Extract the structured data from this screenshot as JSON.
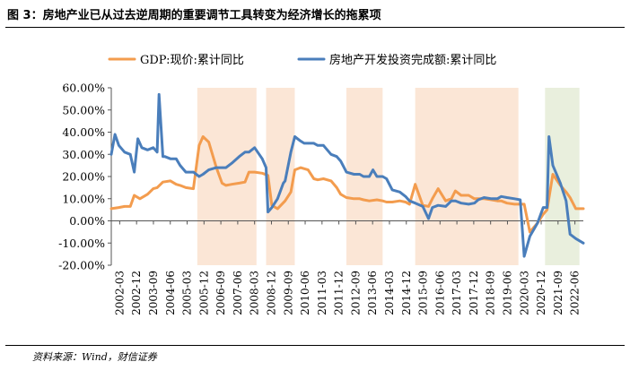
{
  "figure": {
    "title": "图 3：房地产业已从过去逆周期的重要调节工具转变为经济增长的拖累项",
    "source": "资料来源：Wind，财信证券"
  },
  "colors": {
    "gdp": "#f39c4e",
    "realestate": "#4a7ebb",
    "shade_orange": "#fbe6d6",
    "shade_green": "#e9efdd"
  },
  "chart_data": {
    "type": "line",
    "title": "",
    "xlabel": "",
    "ylabel": "",
    "ylim": [
      -20,
      60
    ],
    "y_ticks": [
      -20,
      -10,
      0,
      10,
      20,
      30,
      40,
      50,
      60
    ],
    "y_tick_labels": [
      "-20.00%",
      "-10.00%",
      "0.00%",
      "10.00%",
      "20.00%",
      "30.00%",
      "40.00%",
      "50.00%",
      "60.00%"
    ],
    "x_tick_labels": [
      "2002-03",
      "2002-12",
      "2003-09",
      "2004-06",
      "2005-03",
      "2005-12",
      "2006-09",
      "2007-06",
      "2008-03",
      "2008-12",
      "2009-09",
      "2010-06",
      "2011-03",
      "2011-12",
      "2012-09",
      "2013-06",
      "2014-03",
      "2014-12",
      "2015-09",
      "2016-06",
      "2017-03",
      "2017-12",
      "2018-09",
      "2019-06",
      "2020-03",
      "2020-12",
      "2021-09",
      "2022-06"
    ],
    "x_range": [
      2002.17,
      2022.75
    ],
    "legend": {
      "position": "top"
    },
    "series": [
      {
        "name": "GDP:现价:累计同比",
        "color_key": "gdp",
        "x": [
          2002.17,
          2002.5,
          2002.75,
          2003.0,
          2003.17,
          2003.42,
          2003.75,
          2004.0,
          2004.17,
          2004.42,
          2004.75,
          2005.0,
          2005.17,
          2005.42,
          2005.75,
          2006.0,
          2006.17,
          2006.42,
          2006.75,
          2007.0,
          2007.17,
          2007.42,
          2007.75,
          2008.0,
          2008.17,
          2008.42,
          2008.75,
          2009.0,
          2009.17,
          2009.42,
          2009.75,
          2010.0,
          2010.17,
          2010.42,
          2010.75,
          2011.0,
          2011.17,
          2011.42,
          2011.75,
          2012.0,
          2012.17,
          2012.42,
          2012.75,
          2013.0,
          2013.17,
          2013.42,
          2013.75,
          2014.0,
          2014.17,
          2014.42,
          2014.75,
          2015.0,
          2015.17,
          2015.42,
          2015.75,
          2016.0,
          2016.17,
          2016.42,
          2016.75,
          2017.0,
          2017.17,
          2017.42,
          2017.75,
          2018.0,
          2018.17,
          2018.42,
          2018.75,
          2019.0,
          2019.17,
          2019.42,
          2019.75,
          2020.0,
          2020.17,
          2020.42,
          2020.75,
          2021.0,
          2021.17,
          2021.42,
          2021.75,
          2022.0,
          2022.17,
          2022.42,
          2022.75
        ],
        "values": [
          5.5,
          6,
          6.5,
          6.5,
          11.5,
          10,
          12,
          14.5,
          15,
          17.5,
          18,
          16.5,
          16,
          15,
          14.5,
          34,
          38,
          35.5,
          24,
          17,
          16,
          16.5,
          17,
          17.5,
          22,
          22,
          21.5,
          20.5,
          7,
          5.5,
          9,
          13,
          23,
          24,
          23,
          19,
          18.5,
          19,
          18,
          15,
          12,
          10.5,
          10,
          10,
          9.5,
          9,
          9.5,
          9,
          8.5,
          8.5,
          9,
          8.5,
          7.5,
          16.5,
          7,
          6.5,
          10,
          14.5,
          9,
          10,
          13.5,
          11.5,
          11.5,
          10,
          10,
          10,
          9.5,
          9,
          9,
          8,
          7.5,
          7.5,
          7.5,
          -5,
          -1,
          3,
          5,
          21,
          16,
          13,
          10.5,
          5.5,
          5.5
        ]
      },
      {
        "name": "房地产开发投资完成额:累计同比",
        "color_key": "realestate",
        "x": [
          2002.17,
          2002.33,
          2002.5,
          2002.75,
          2003.0,
          2003.17,
          2003.33,
          2003.5,
          2003.75,
          2004.0,
          2004.17,
          2004.25,
          2004.42,
          2004.5,
          2004.75,
          2005.0,
          2005.17,
          2005.42,
          2005.75,
          2006.0,
          2006.17,
          2006.42,
          2006.75,
          2007.0,
          2007.17,
          2007.42,
          2007.75,
          2008.0,
          2008.17,
          2008.42,
          2008.75,
          2008.92,
          2009.0,
          2009.17,
          2009.42,
          2009.67,
          2009.75,
          2010.0,
          2010.17,
          2010.42,
          2010.58,
          2010.75,
          2011.0,
          2011.17,
          2011.42,
          2011.75,
          2012.0,
          2012.17,
          2012.42,
          2012.75,
          2013.0,
          2013.17,
          2013.42,
          2013.58,
          2013.75,
          2014.0,
          2014.17,
          2014.42,
          2014.75,
          2015.0,
          2015.17,
          2015.42,
          2015.75,
          2016.0,
          2016.17,
          2016.42,
          2016.75,
          2017.0,
          2017.17,
          2017.42,
          2017.75,
          2018.0,
          2018.17,
          2018.42,
          2018.75,
          2019.0,
          2019.17,
          2019.42,
          2019.75,
          2020.0,
          2020.17,
          2020.42,
          2020.75,
          2021.0,
          2021.17,
          2021.25,
          2021.42,
          2021.75,
          2022.0,
          2022.17,
          2022.42,
          2022.75
        ],
        "values": [
          30,
          39,
          34,
          31,
          30,
          22,
          37,
          33,
          32,
          33,
          31,
          57,
          29,
          29,
          28,
          28,
          25,
          22,
          22,
          20,
          21,
          23,
          24,
          24,
          24,
          26,
          29,
          31,
          31,
          33,
          28,
          24,
          4,
          6,
          10,
          17,
          18,
          31,
          38,
          36,
          35,
          35,
          35,
          34,
          34,
          30,
          29,
          27,
          22,
          21,
          21,
          20,
          20,
          23,
          20,
          20,
          19,
          14,
          13,
          11,
          9,
          8,
          6.5,
          1,
          6,
          7,
          6.5,
          9,
          9,
          8,
          7.5,
          8,
          9.5,
          10.5,
          10,
          10,
          11,
          10.5,
          10,
          9.5,
          -16,
          -7,
          -1,
          6,
          6,
          38,
          25,
          17,
          9,
          -6,
          -8,
          -10
        ]
      }
    ],
    "shaded_periods": [
      {
        "start": 2005.92,
        "end": 2008.5,
        "color_key": "shade_orange"
      },
      {
        "start": 2008.92,
        "end": 2010.17,
        "color_key": "shade_orange"
      },
      {
        "start": 2012.42,
        "end": 2014.0,
        "color_key": "shade_orange"
      },
      {
        "start": 2015.42,
        "end": 2019.92,
        "color_key": "shade_orange"
      },
      {
        "start": 2021.08,
        "end": 2022.58,
        "color_key": "shade_green"
      }
    ]
  }
}
